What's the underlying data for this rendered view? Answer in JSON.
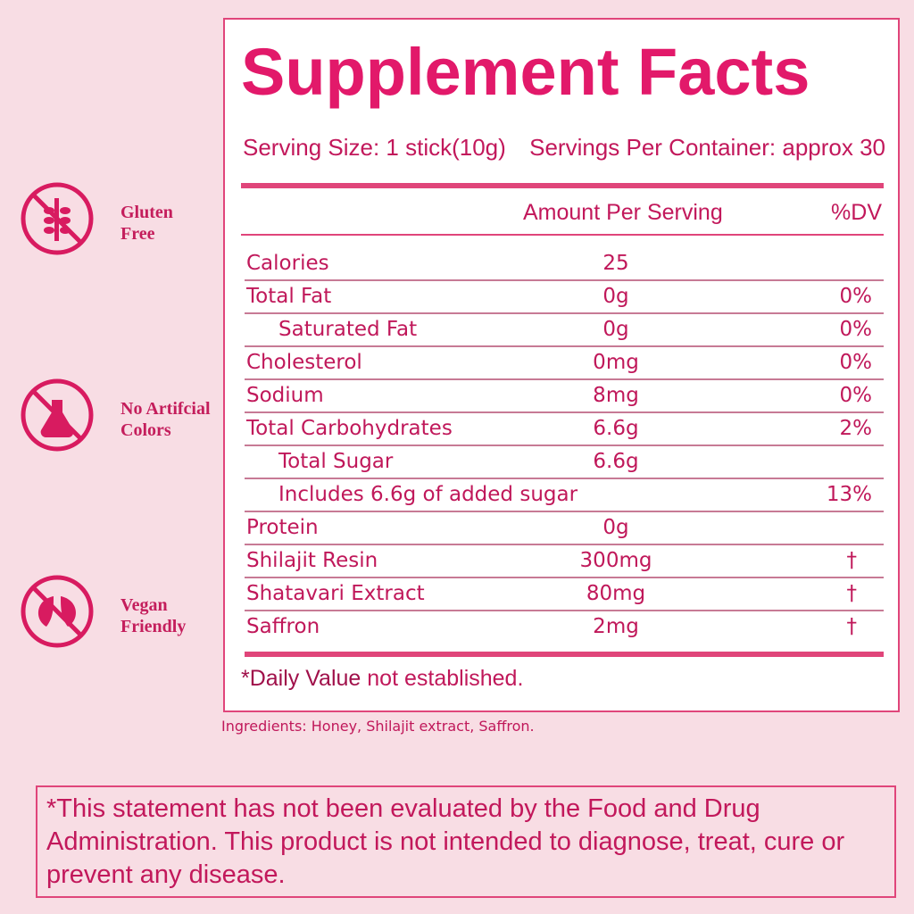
{
  "badges": [
    {
      "lines": [
        "Gluten",
        "Free"
      ]
    },
    {
      "lines": [
        "No Artifcial",
        "Colors"
      ]
    },
    {
      "lines": [
        "Vegan",
        "Friendly"
      ]
    }
  ],
  "facts": {
    "title": "Supplement Facts",
    "serving_size": "Serving Size: 1 stick(10g)",
    "servings_per_container": "Servings Per Container:  approx 30",
    "columns": [
      "Amount Per Serving",
      "%DV"
    ],
    "rows": [
      {
        "name": "Calories",
        "amount": "25"
      },
      {
        "name": "Total Fat",
        "amount": "0g",
        "dv": "0%"
      },
      {
        "name": "Saturated Fat",
        "amount": "0g",
        "dv": "0%",
        "indent": true
      },
      {
        "name": "Cholesterol",
        "amount": "0mg",
        "dv": "0%"
      },
      {
        "name": "Sodium",
        "amount": "8mg",
        "dv": "0%"
      },
      {
        "name": "Total Carbohydrates",
        "amount": "6.6g",
        "dv": "2%"
      },
      {
        "name": "Total Sugar",
        "amount": "6.6g",
        "indent": true
      },
      {
        "name": "Includes 6.6g of added sugar",
        "dv": "13%",
        "indent": true
      },
      {
        "name": "Protein",
        "amount": "0g"
      },
      {
        "name": "Shilajit Resin",
        "amount": "300mg",
        "dv": "†"
      },
      {
        "name": "Shatavari Extract",
        "amount": "80mg",
        "dv": "†"
      },
      {
        "name": "Saffron",
        "amount": "2mg",
        "dv": "†"
      }
    ],
    "footnote_bold": "*Daily Value",
    "footnote_rest": "not established."
  },
  "ingredients": {
    "label": "Ingredients:",
    "bold": "Honey,",
    "rest": "Shilajit extract, Saffron."
  },
  "disclaimer": "*This statement has not been evaluated by the Food and Drug Administration. This product is not intended to diagnose, treat, cure or prevent any disease."
}
